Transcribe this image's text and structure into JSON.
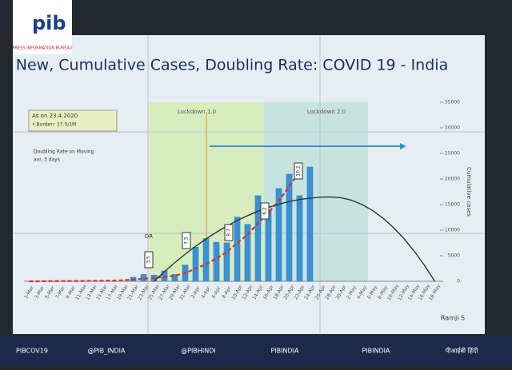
{
  "chart_data": {
    "type": "bar",
    "title": "New, Cumulative Cases, Doubling Rate: COVID 19 - India",
    "annotations": [
      "As on 23.4.2020",
      "• Burden: 17.5/1M",
      "Doubling Rate on Moving",
      "avr. 3 days",
      "Lockdown 1.0",
      "Lockdown 2.0",
      "DR",
      "3.5",
      "7.5",
      "9.7",
      "6.2",
      "10.2",
      "Ramji S"
    ],
    "y2_label": "Cumulative cases",
    "categories": [
      "1-Mar",
      "3-Mar",
      "5-Mar",
      "7-Mar",
      "9-Mar",
      "11-Mar",
      "13-Mar",
      "15-Mar",
      "17-Mar",
      "19-Mar",
      "21-Mar",
      "23-Mar",
      "25-Mar",
      "27-Mar",
      "29-Mar",
      "31-Mar",
      "2-Apr",
      "4-Apr",
      "6-Apr",
      "8-Apr",
      "10-Apr",
      "12-Apr",
      "14-Apr",
      "16-Apr",
      "18-Apr",
      "20-Apr",
      "22-Apr",
      "24-Apr",
      "26-Apr",
      "28-Apr",
      "30-Apr",
      "2-May",
      "4-May",
      "6-May",
      "8-May",
      "10-May",
      "12-May",
      "14-May",
      "16-May",
      "18-May"
    ],
    "ylim": [
      0,
      2500
    ],
    "y2lim": [
      0,
      35000
    ],
    "y2ticks": [
      0,
      5000,
      10000,
      15000,
      20000,
      25000,
      30000,
      35000
    ],
    "series": [
      {
        "color": "#3b8fd2",
        "values": [
          null,
          null,
          null,
          null,
          null,
          null,
          null,
          null,
          null,
          null,
          60,
          100,
          90,
          150,
          100,
          230,
          480,
          600,
          550,
          540,
          900,
          800,
          1200,
          1000,
          1300,
          1500,
          1200,
          1600,
          null,
          null,
          null,
          null,
          null,
          null,
          null,
          null,
          null,
          null,
          null,
          null
        ]
      },
      {
        "type": "line",
        "axis": "y2",
        "color": "#d9322b",
        "values": [
          3,
          5,
          30,
          40,
          45,
          60,
          80,
          110,
          140,
          200,
          330,
          500,
          650,
          870,
          1100,
          1600,
          2500,
          3300,
          4500,
          5700,
          7500,
          9100,
          11400,
          13400,
          15700,
          18600,
          21400,
          null,
          null,
          null,
          null,
          null,
          null,
          null,
          null,
          null,
          null,
          null,
          null,
          null
        ]
      },
      {
        "type": "line",
        "axis": "y2",
        "color": "#333333",
        "values": [
          null,
          null,
          null,
          null,
          null,
          null,
          null,
          null,
          null,
          null,
          null,
          null,
          0,
          1880,
          3650,
          5310,
          6850,
          8280,
          9590,
          10790,
          11880,
          12850,
          13700,
          14440,
          15070,
          15590,
          15990,
          16270,
          16440,
          16500,
          16340,
          15840,
          15020,
          13860,
          12380,
          10560,
          8420,
          5940,
          3140,
          0
        ]
      }
    ]
  },
  "overlay": {
    "logo": "pib",
    "logo_sub": "PRESS INFORMATION BUREAU",
    "footer": [
      "PIBCOV19",
      "@PIB_INDIA",
      "@PIBHINDI",
      "PIBINDIA",
      "PIBINDIA",
      "पीआईबी हिंदी"
    ]
  }
}
